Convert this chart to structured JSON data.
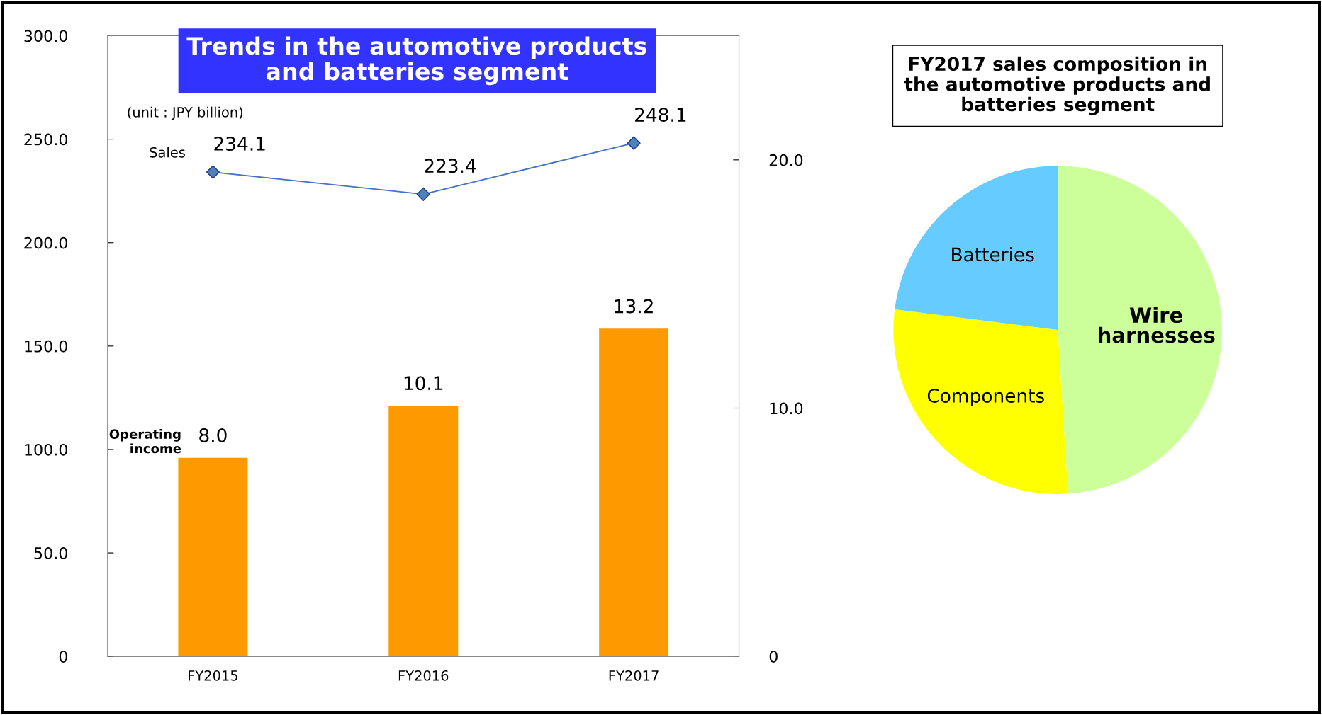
{
  "chart_data": [
    {
      "type": "bar",
      "title": "Trends in the automotive products\nand batteries segment",
      "categories": [
        "FY2015",
        "FY2016",
        "FY2017"
      ],
      "series": [
        {
          "name": "Operating\nincome",
          "type": "bar",
          "axis": "y2",
          "color": "#ff9900",
          "values": [
            8.0,
            10.1,
            13.2
          ],
          "value_labels": [
            "8.0",
            "10.1",
            "13.2"
          ]
        },
        {
          "name": "Sales",
          "type": "line",
          "color": "#4472c4",
          "marker": "diamond",
          "values": [
            234.1,
            223.4,
            248.1
          ],
          "value_labels": [
            "234.1",
            "223.4",
            "248.1"
          ]
        }
      ],
      "ylim": [
        0,
        300
      ],
      "yticks": [
        {
          "value": 0,
          "label": "0"
        },
        {
          "value": 50,
          "label": "50.0"
        },
        {
          "value": 100,
          "label": "100.0"
        },
        {
          "value": 150,
          "label": "150.0"
        },
        {
          "value": 200,
          "label": "200.0"
        },
        {
          "value": 250,
          "label": "250.0"
        },
        {
          "value": 300,
          "label": "300.0"
        }
      ],
      "y2lim": [
        0,
        25
      ],
      "y2ticks": [
        {
          "value": 0,
          "label": "0"
        },
        {
          "value": 10,
          "label": "10.0"
        },
        {
          "value": 20,
          "label": "20.0"
        }
      ],
      "annotations": [
        "(unit : JPY billion)"
      ]
    },
    {
      "type": "pie",
      "title": "FY2017 sales composition in\nthe automotive products and\nbatteries segment",
      "categories": [
        "Wire\nharnesses",
        "Components",
        "Batteries"
      ],
      "values": [
        49,
        28,
        23
      ],
      "colors": [
        "#ccff99",
        "#ffff00",
        "#66ccff"
      ]
    }
  ]
}
